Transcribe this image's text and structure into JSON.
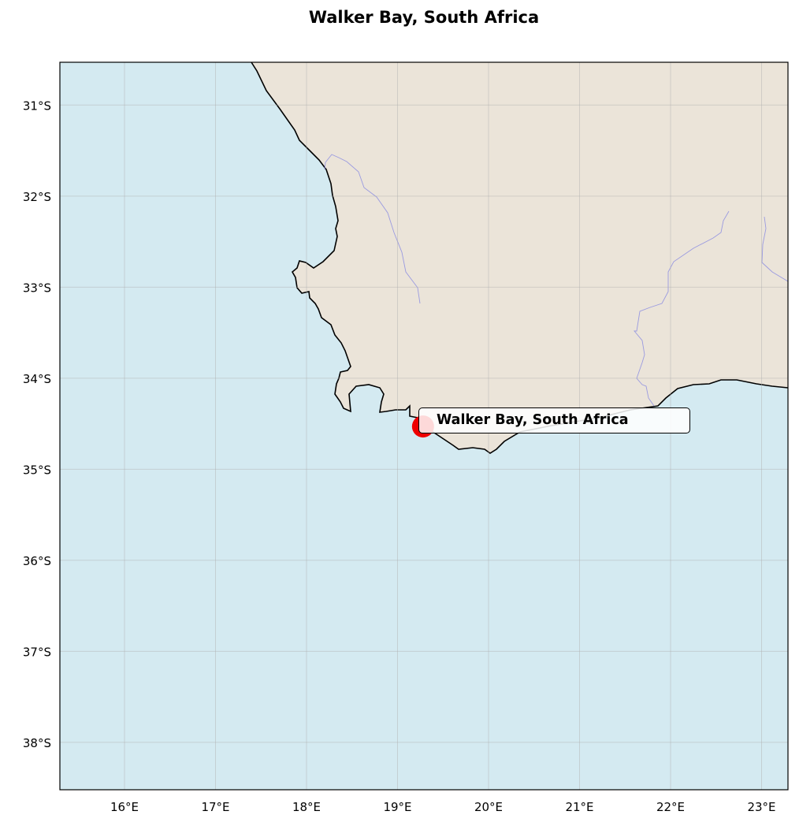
{
  "title": "Walker Bay, South Africa",
  "map": {
    "extent": {
      "lon": [
        15.29,
        23.29
      ],
      "lat": [
        -30.53,
        -38.52
      ]
    },
    "x_ticks": [
      {
        "lon": 16,
        "label": "16°E"
      },
      {
        "lon": 17,
        "label": "17°E"
      },
      {
        "lon": 18,
        "label": "18°E"
      },
      {
        "lon": 19,
        "label": "19°E"
      },
      {
        "lon": 20,
        "label": "20°E"
      },
      {
        "lon": 21,
        "label": "21°E"
      },
      {
        "lon": 22,
        "label": "22°E"
      },
      {
        "lon": 23,
        "label": "23°E"
      }
    ],
    "y_ticks": [
      {
        "lat": -31,
        "label": "31°S"
      },
      {
        "lat": -32,
        "label": "32°S"
      },
      {
        "lat": -33,
        "label": "33°S"
      },
      {
        "lat": -34,
        "label": "34°S"
      },
      {
        "lat": -35,
        "label": "35°S"
      },
      {
        "lat": -36,
        "label": "36°S"
      },
      {
        "lat": -37,
        "label": "37°S"
      },
      {
        "lat": -38,
        "label": "38°S"
      }
    ],
    "gridlines": true,
    "colors": {
      "ocean": "#d4eaf1",
      "land": "#ebe4d9",
      "coastline": "#000000",
      "rivers": "#9a9ae0",
      "marker": "#ee0000",
      "grid": "#b0b0b0"
    },
    "marker": {
      "lon": 19.28,
      "lat": -34.53,
      "label": "Walker Bay, South Africa"
    }
  }
}
